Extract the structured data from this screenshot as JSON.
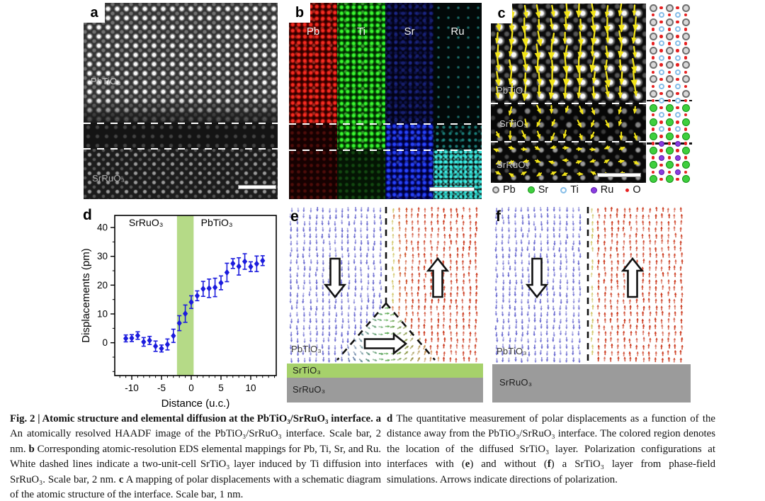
{
  "panels": {
    "a": {
      "label": "a",
      "material_top": "PbTiO₃",
      "material_bottom": "SrRuO₃"
    },
    "b": {
      "label": "b",
      "elements": [
        "Pb",
        "Ti",
        "Sr",
        "Ru"
      ]
    },
    "c": {
      "label": "c",
      "material_top": "PbTiO₃",
      "material_mid": "SrTiO₃",
      "material_bottom": "SrRuO₃",
      "legend": [
        {
          "symbol": "pb",
          "label": "Pb"
        },
        {
          "symbol": "sr",
          "label": "Sr"
        },
        {
          "symbol": "ti",
          "label": "Ti"
        },
        {
          "symbol": "ru",
          "label": "Ru"
        },
        {
          "symbol": "o",
          "label": "O"
        }
      ],
      "schematic_rows": [
        "Pb",
        "Ti",
        "Pb",
        "Ti",
        "Pb",
        "Ti",
        "Pb",
        "Ti",
        "Pb",
        "Ti",
        "Pb",
        "Ti",
        "Pb",
        "Ti*",
        "Sr",
        "Ti",
        "Sr",
        "Ti",
        "Sr",
        "Ru*",
        "Sr",
        "Ru",
        "Sr",
        "Ru",
        "Sr"
      ]
    },
    "d": {
      "label": "d"
    },
    "e": {
      "label": "e",
      "material_film": "PbTiO₃",
      "material_layer": "SrTiO₃",
      "material_sub": "SrRuO₃"
    },
    "f": {
      "label": "f",
      "material_film": "PbTiO₃",
      "material_sub": "SrRuO₃"
    }
  },
  "chart_data": {
    "type": "scatter",
    "x": [
      -11,
      -10,
      -9,
      -8,
      -7,
      -6,
      -5,
      -4,
      -3,
      -2,
      -1,
      0,
      1,
      2,
      3,
      4,
      5,
      6,
      7,
      8,
      9,
      10,
      11,
      12
    ],
    "y": [
      1.5,
      1.6,
      2.5,
      0.3,
      0.8,
      -1.2,
      -2.0,
      -0.6,
      2.4,
      6.8,
      10.1,
      14.1,
      16.3,
      18.7,
      18.9,
      19.2,
      20.8,
      24.4,
      27.5,
      26.5,
      28.2,
      26.4,
      27.4,
      28.5
    ],
    "yerr": [
      1.2,
      1.2,
      1.3,
      1.5,
      1.4,
      1.8,
      1.2,
      1.9,
      2.3,
      2.6,
      3.0,
      2.2,
      1.7,
      2.6,
      3.2,
      3.2,
      2.4,
      3.2,
      1.7,
      3.0,
      2.7,
      1.7,
      2.7,
      1.7
    ],
    "title": "",
    "xlabel": "Distance (u.c.)",
    "ylabel": "Displacements (pm)",
    "xlim": [
      -12.86,
      14.29
    ],
    "ylim": [
      -11.4,
      44.2
    ],
    "xticks": [
      -10,
      -5,
      0,
      5,
      10
    ],
    "yticks": [
      0,
      10,
      20,
      30,
      40
    ],
    "marker": "diamond",
    "marker_color": "#1c1cdd",
    "band": {
      "x0": -2.4,
      "x1": 0.4,
      "color": "#a8d472"
    },
    "region_labels": [
      {
        "text": "SrRuO₃",
        "x": -7.6,
        "y": 40.5
      },
      {
        "text": "PbTiO₃",
        "x": 4.3,
        "y": 40.5
      }
    ],
    "grid": false,
    "legend_position": "none"
  },
  "colors": {
    "arrow_yellow": "#f2e418",
    "vector_blue": "#6b6bd0",
    "vector_red": "#cc3a1e",
    "vector_orange": "#d8864a",
    "vector_green": "#57a94f",
    "vector_pale": "#cfc462",
    "srtio3_green": "#a6d16b",
    "srruo3_gray": "#9b9b9b",
    "data_blue": "#1c1cdd",
    "band_green": "#a8d472",
    "atom_pb_ring": "#6e6e6e",
    "atom_pb_fill": "#d9d9d9",
    "atom_sr_ring": "#149214",
    "atom_sr_fill": "#3ecf3e",
    "atom_ti_ring": "#85bde8",
    "atom_ti_fill": "#ffffff",
    "atom_ru_ring": "#5c18a8",
    "atom_ru_fill": "#8a3de0",
    "atom_o": "#e62020"
  },
  "caption": {
    "left": [
      {
        "t": "Fig. 2 | Atomic structure and elemental diffusion at the PbTiO₃/SrRuO₃ interface.",
        "b": true
      },
      {
        "t": " ",
        "b": false
      },
      {
        "t": "a",
        "b": true
      },
      {
        "t": " An atomically resolved HAADF image of the PbTiO₃/SrRuO₃ interface. Scale bar, 2 nm. ",
        "b": false
      },
      {
        "t": "b",
        "b": true
      },
      {
        "t": " Corresponding atomic-resolution EDS elemental mappings for Pb, Ti, Sr, and Ru. White dashed lines indicate a two-unit-cell SrTiO₃ layer induced by Ti diffusion into SrRuO₃. Scale bar, 2 nm. ",
        "b": false
      },
      {
        "t": "c",
        "b": true
      },
      {
        "t": " A mapping of polar displacements with a schematic diagram of the atomic structure of the interface. Scale bar, 1 nm.",
        "b": false
      }
    ],
    "right": [
      {
        "t": "d",
        "b": true
      },
      {
        "t": " The quantitative measurement of polar displacements as a function of the distance away from the PbTiO₃/SrRuO₃ interface. The colored region denotes the location of the diffused SrTiO₃ layer. Polarization configurations at interfaces with (",
        "b": false
      },
      {
        "t": "e",
        "b": true
      },
      {
        "t": ") and without (",
        "b": false
      },
      {
        "t": "f",
        "b": true
      },
      {
        "t": ") a SrTiO₃ layer from phase-field simulations. Arrows indicate directions of polarization.",
        "b": false
      }
    ]
  }
}
